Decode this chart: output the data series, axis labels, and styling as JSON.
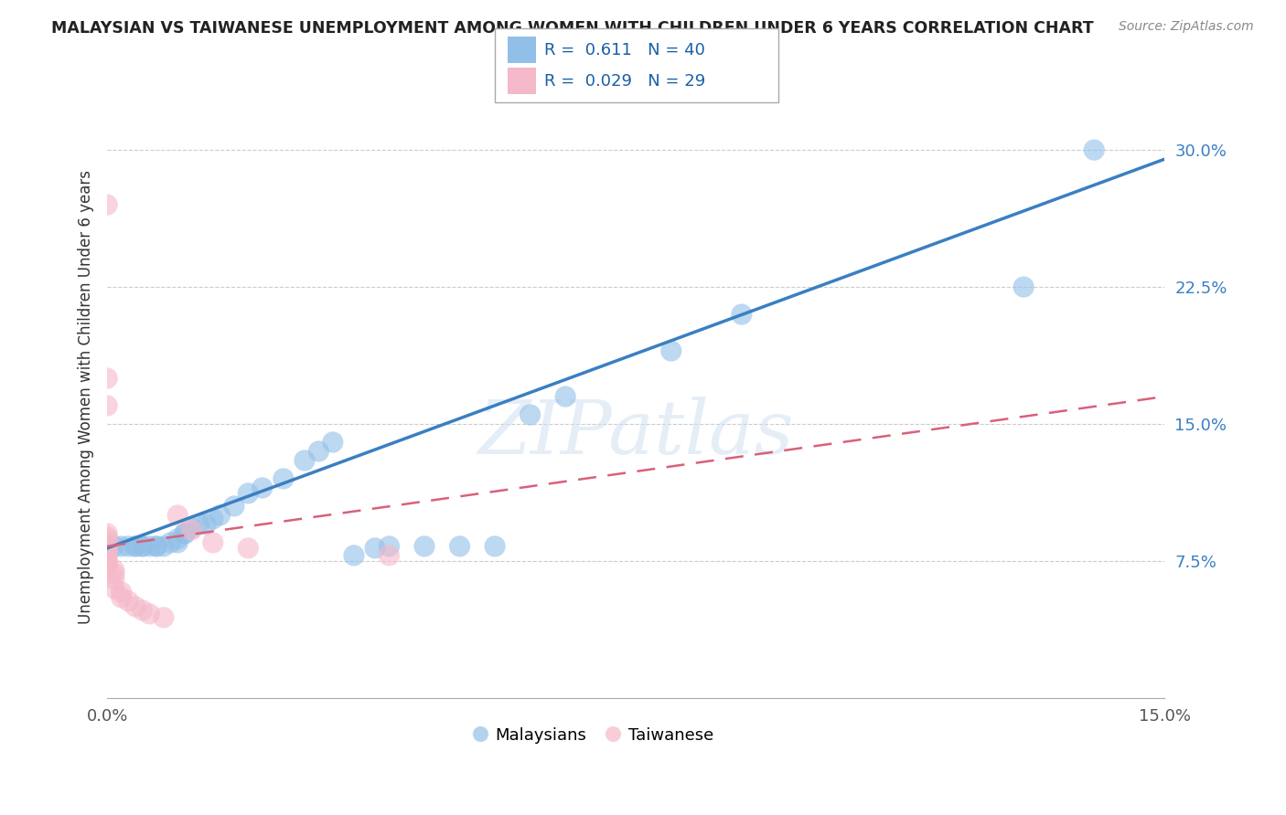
{
  "title": "MALAYSIAN VS TAIWANESE UNEMPLOYMENT AMONG WOMEN WITH CHILDREN UNDER 6 YEARS CORRELATION CHART",
  "source": "Source: ZipAtlas.com",
  "ylabel": "Unemployment Among Women with Children Under 6 years",
  "ytick_labels": [
    "7.5%",
    "15.0%",
    "22.5%",
    "30.0%"
  ],
  "ytick_values": [
    0.075,
    0.15,
    0.225,
    0.3
  ],
  "xmin": 0.0,
  "xmax": 0.15,
  "ymin": 0.0,
  "ymax": 0.33,
  "watermark_text": "ZIPatlas",
  "malaysian_color": "#92bfe8",
  "taiwanese_color": "#f5b8c8",
  "malaysian_R": "0.611",
  "malaysian_N": "40",
  "taiwanese_R": "0.029",
  "taiwanese_N": "29",
  "blue_line_color": "#3a7fc1",
  "pink_line_color": "#d9607a",
  "grid_color": "#cccccc",
  "malaysian_x": [
    0.001,
    0.002,
    0.003,
    0.004,
    0.004,
    0.005,
    0.005,
    0.006,
    0.007,
    0.007,
    0.008,
    0.009,
    0.01,
    0.01,
    0.011,
    0.011,
    0.012,
    0.013,
    0.014,
    0.015,
    0.016,
    0.018,
    0.02,
    0.022,
    0.025,
    0.028,
    0.03,
    0.032,
    0.035,
    0.038,
    0.04,
    0.045,
    0.05,
    0.055,
    0.06,
    0.065,
    0.08,
    0.09,
    0.13,
    0.14
  ],
  "malaysian_y": [
    0.083,
    0.083,
    0.083,
    0.083,
    0.083,
    0.083,
    0.083,
    0.083,
    0.083,
    0.083,
    0.083,
    0.085,
    0.085,
    0.087,
    0.09,
    0.09,
    0.093,
    0.095,
    0.095,
    0.098,
    0.1,
    0.105,
    0.112,
    0.115,
    0.12,
    0.13,
    0.135,
    0.14,
    0.078,
    0.082,
    0.083,
    0.083,
    0.083,
    0.083,
    0.155,
    0.165,
    0.19,
    0.21,
    0.225,
    0.3
  ],
  "taiwanese_x": [
    0.0,
    0.0,
    0.0,
    0.0,
    0.0,
    0.0,
    0.0,
    0.0,
    0.0,
    0.0,
    0.0,
    0.0,
    0.0,
    0.001,
    0.001,
    0.001,
    0.001,
    0.002,
    0.002,
    0.003,
    0.004,
    0.005,
    0.006,
    0.008,
    0.01,
    0.012,
    0.015,
    0.02,
    0.04
  ],
  "taiwanese_y": [
    0.27,
    0.175,
    0.16,
    0.09,
    0.088,
    0.086,
    0.084,
    0.082,
    0.08,
    0.078,
    0.076,
    0.074,
    0.072,
    0.07,
    0.068,
    0.065,
    0.06,
    0.058,
    0.055,
    0.053,
    0.05,
    0.048,
    0.046,
    0.044,
    0.1,
    0.092,
    0.085,
    0.082,
    0.078
  ],
  "blue_line_x0": 0.0,
  "blue_line_y0": 0.082,
  "blue_line_x1": 0.15,
  "blue_line_y1": 0.295,
  "pink_line_x0": 0.0,
  "pink_line_y0": 0.083,
  "pink_line_x1": 0.15,
  "pink_line_y1": 0.165
}
